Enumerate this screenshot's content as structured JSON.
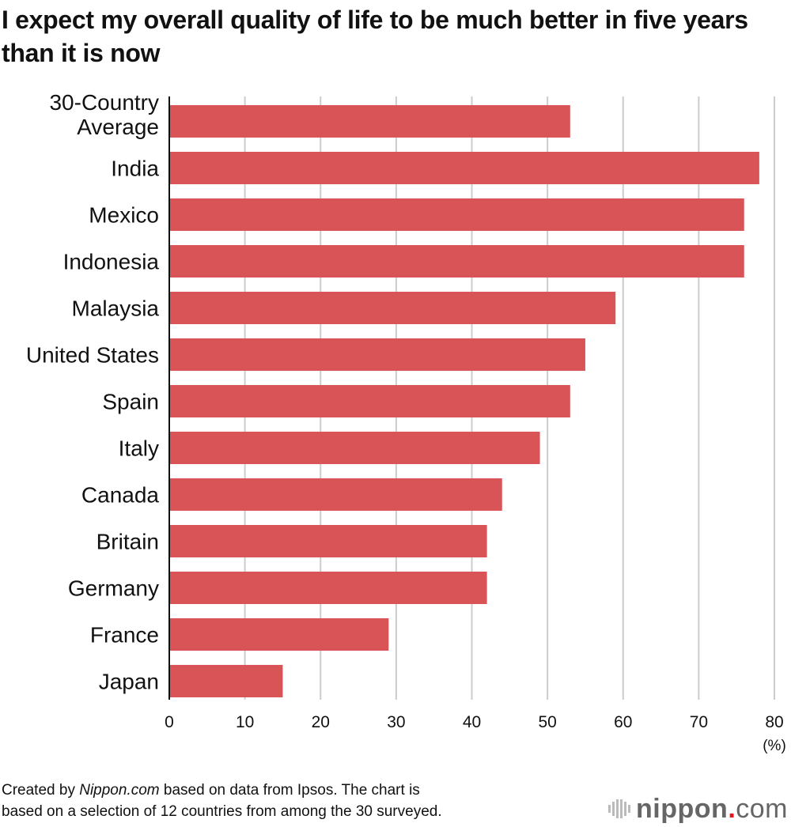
{
  "title": "I expect my overall quality of life to be much better in five years than it is now",
  "chart_data": {
    "type": "bar",
    "orientation": "horizontal",
    "categories": [
      "30-Country Average",
      "India",
      "Mexico",
      "Indonesia",
      "Malaysia",
      "United States",
      "Spain",
      "Italy",
      "Canada",
      "Britain",
      "Germany",
      "France",
      "Japan"
    ],
    "values": [
      53,
      78,
      76,
      76,
      59,
      55,
      53,
      49,
      44,
      42,
      42,
      29,
      15
    ],
    "xlim": [
      0,
      80
    ],
    "xticks": [
      "0",
      "10",
      "20",
      "30",
      "40",
      "50",
      "60",
      "70",
      "80"
    ],
    "xunit": "(%)",
    "grid": true,
    "bar_color": "#d95457"
  },
  "footer": {
    "line1_prefix": "Created by ",
    "line1_source": "Nippon.com",
    "line1_suffix": " based on data from Ipsos. The chart is",
    "line2": "based on a selection of 12 countries from among the 30 surveyed."
  },
  "logo": {
    "text": "nippon.com"
  }
}
